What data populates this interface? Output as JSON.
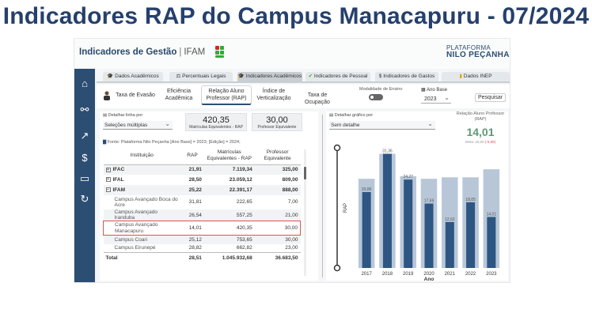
{
  "page_title": "Indicadores RAP do Campus Manacapuru - 07/2024",
  "dashboard": {
    "title": "Indicadores de Gestão",
    "separator": "|",
    "org": "IFAM",
    "platform_line1": "PLATAFORMA",
    "platform_line2": "NILO PEÇANHA"
  },
  "sidebar": [
    {
      "icon": "home-icon",
      "glyph": "⌂"
    },
    {
      "icon": "network-icon",
      "glyph": "⚯"
    },
    {
      "icon": "trend-chart-icon",
      "glyph": "↗"
    },
    {
      "icon": "dollar-icon",
      "glyph": "$"
    },
    {
      "icon": "people-card-icon",
      "glyph": "▭"
    },
    {
      "icon": "refresh-icon",
      "glyph": "↻"
    }
  ],
  "tabs": [
    {
      "label": "Dados Acadêmicos",
      "icon": "graduation-cap-icon"
    },
    {
      "label": "Percentuais Legais",
      "icon": "scale-icon"
    },
    {
      "label": "Indicadores Acadêmicos",
      "icon": "graduation-cap-icon",
      "active": true
    },
    {
      "label": "Indicadores de Pessoal",
      "icon": "check-icon"
    },
    {
      "label": "Indicadores de Gastos",
      "icon": "dollar-icon"
    },
    {
      "label": "Dados INEP",
      "icon": "bar-chart-icon"
    }
  ],
  "subtabs": {
    "evasao": "Taxa de Evasão",
    "eficiencia": "Eficiência Acadêmica",
    "rap": "Relação Aluno Professor (RAP)",
    "verticalizacao": "Índice de Verticalização",
    "ocupacao": "Taxa de Ocupação"
  },
  "controls": {
    "modalidade_label": "Modalidade de Ensino",
    "ano_label": "Ano Base",
    "ano_value": "2023",
    "search_label": "Pesquisar"
  },
  "left": {
    "detail_label": "Detalhar linha por",
    "detail_value": "Seleções múltiplas",
    "card1_value": "420,35",
    "card1_label": "Matrículas Equivalentes - RAP",
    "card2_value": "30,00",
    "card2_label": "Professor Equivalente",
    "fonte": "Fonte: Plataforma Nilo Peçanha [Ano Base] = 2023; [Edição] = 2024;"
  },
  "table": {
    "headers": [
      "Instituição",
      "RAP",
      "Matrículas Equivalentes - RAP",
      "Professor Equivalente"
    ],
    "rows": [
      {
        "name": "IFAC",
        "rap": "21,91",
        "mat": "7.119,34",
        "prof": "325,00",
        "kind": "grp",
        "exp": "⊞"
      },
      {
        "name": "IFAL",
        "rap": "28,50",
        "mat": "23.059,12",
        "prof": "809,00",
        "kind": "grp",
        "exp": "⊞"
      },
      {
        "name": "IFAM",
        "rap": "25,22",
        "mat": "22.391,17",
        "prof": "888,00",
        "kind": "grp",
        "exp": "⊟"
      },
      {
        "name": "Campus Avançado Boca do Acre",
        "rap": "31,81",
        "mat": "222,65",
        "prof": "7,00",
        "kind": "sub tall"
      },
      {
        "name": "Campus Avançado Iranduba",
        "rap": "26,54",
        "mat": "557,25",
        "prof": "21,00",
        "kind": "sub"
      },
      {
        "name": "Campus Avançado Manacapuru",
        "rap": "14,01",
        "mat": "420,35",
        "prof": "30,00",
        "kind": "sub tall hl"
      },
      {
        "name": "Campus Coari",
        "rap": "25,12",
        "mat": "753,65",
        "prof": "30,00",
        "kind": "sub"
      },
      {
        "name": "Campus Eirunepé",
        "rap": "28,82",
        "mat": "662,82",
        "prof": "23,00",
        "kind": "sub"
      }
    ],
    "total": {
      "name": "Total",
      "rap": "28,51",
      "mat": "1.045.932,68",
      "prof": "36.683,50"
    }
  },
  "right": {
    "detail_label": "Detalhar gráfico por",
    "detail_value": "Sem detalhe",
    "kpi_title": "Relação Aluno Professor (RAP)",
    "kpi_value": "14,01",
    "kpi_meta_prefix": "Meta: 20,00",
    "kpi_meta_diff": "(-5,99)"
  },
  "chart_data": {
    "type": "bar",
    "xlabel": "Ano",
    "ylabel": "RAP",
    "categories": [
      "2017",
      "2018",
      "2019",
      "2020",
      "2021",
      "2022",
      "2023"
    ],
    "series": [
      {
        "values": [
          20.86,
          31.36,
          24.27,
          17.69,
          12.62,
          18.05,
          14.01
        ]
      }
    ],
    "background_values": [
      24.5,
      31.36,
      25.2,
      24.5,
      24.9,
      24.9,
      27.1
    ],
    "value_labels": [
      "20,86",
      "31,36",
      "24,27",
      "17,69",
      "12,62",
      "18,05",
      "14,01"
    ],
    "ylim": [
      0,
      33
    ],
    "colors": {
      "foreground": "#2d5683",
      "background": "#b8c7d8"
    }
  }
}
